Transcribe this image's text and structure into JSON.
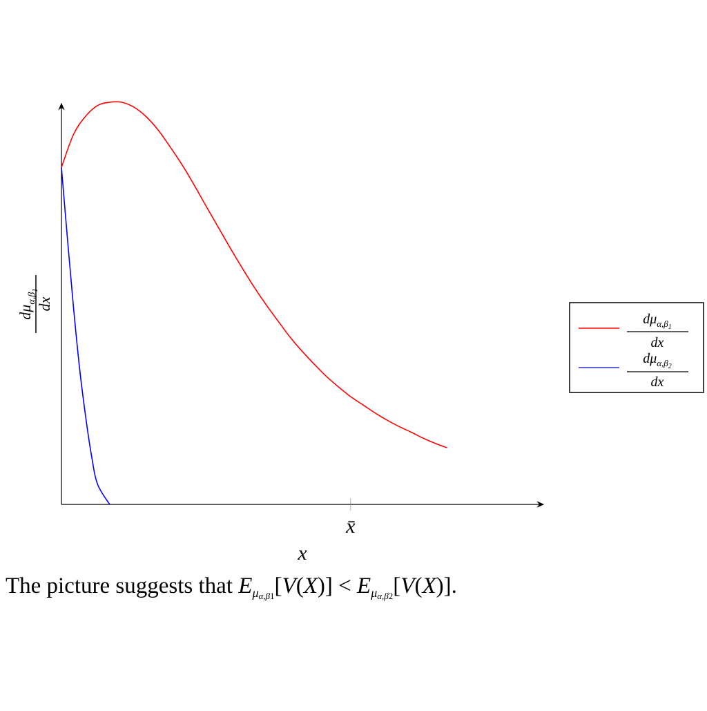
{
  "chart_data": {
    "type": "line",
    "x_label": "x",
    "y_label": "dμα,β1/dx",
    "x_tick_labels": [
      "x̄"
    ],
    "legend_placement": "right",
    "grid": false,
    "series": [
      {
        "name": "dμα,β1/dx",
        "color": "#ff0000",
        "points": [
          [
            0.0,
            0.838
          ],
          [
            0.02,
            0.92
          ],
          [
            0.04,
            0.965
          ],
          [
            0.06,
            0.992
          ],
          [
            0.08,
            1.0
          ],
          [
            0.1,
            1.0
          ],
          [
            0.12,
            0.988
          ],
          [
            0.14,
            0.965
          ],
          [
            0.16,
            0.932
          ],
          [
            0.18,
            0.89
          ],
          [
            0.2,
            0.845
          ],
          [
            0.22,
            0.795
          ],
          [
            0.24,
            0.742
          ],
          [
            0.26,
            0.69
          ],
          [
            0.28,
            0.638
          ],
          [
            0.3,
            0.588
          ],
          [
            0.32,
            0.54
          ],
          [
            0.34,
            0.496
          ],
          [
            0.36,
            0.455
          ],
          [
            0.38,
            0.415
          ],
          [
            0.4,
            0.38
          ],
          [
            0.42,
            0.348
          ],
          [
            0.44,
            0.318
          ],
          [
            0.46,
            0.292
          ],
          [
            0.48,
            0.268
          ],
          [
            0.5,
            0.248
          ],
          [
            0.52,
            0.228
          ],
          [
            0.54,
            0.21
          ],
          [
            0.56,
            0.194
          ],
          [
            0.58,
            0.18
          ],
          [
            0.6,
            0.165
          ],
          [
            0.62,
            0.152
          ],
          [
            0.64,
            0.141
          ]
        ]
      },
      {
        "name": "dμα,β2/dx",
        "color": "#0000ff",
        "points": [
          [
            0.0,
            0.838
          ],
          [
            0.01,
            0.66
          ],
          [
            0.02,
            0.49
          ],
          [
            0.03,
            0.34
          ],
          [
            0.04,
            0.22
          ],
          [
            0.05,
            0.12
          ],
          [
            0.06,
            0.05
          ],
          [
            0.08,
            0.0
          ]
        ]
      }
    ],
    "x_range": [
      0,
      0.8
    ],
    "y_range": [
      0,
      1.0
    ],
    "xbar": 0.48
  },
  "caption": {
    "prefix": "The picture suggests that ",
    "E": "E",
    "mu": "μ",
    "ab": "α,β",
    "sub1": "1",
    "sub2": "2",
    "bracket_open": "[",
    "V": "V",
    "paren_open": "(",
    "X": "X",
    "paren_close": ")",
    "bracket_close": "]",
    "lt": " < ",
    "end": "."
  }
}
